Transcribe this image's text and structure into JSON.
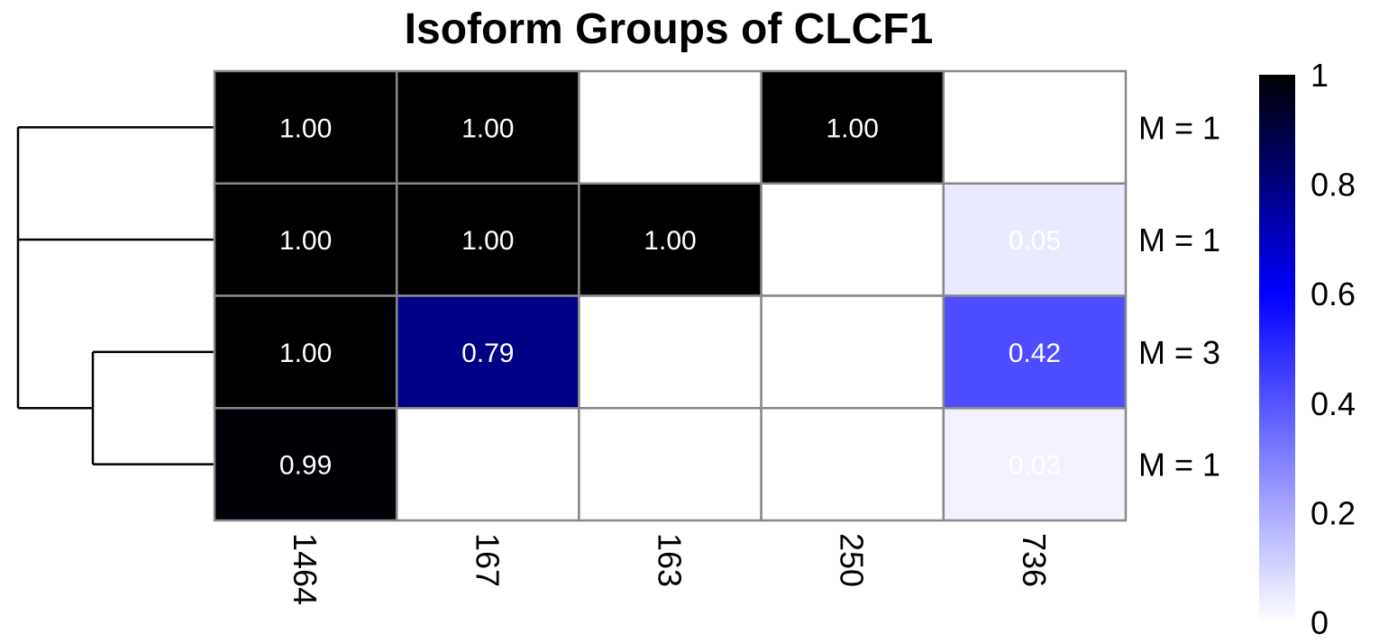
{
  "chart_data": {
    "type": "heatmap",
    "title": "Isoform Groups of CLCF1",
    "columns": [
      "1464",
      "167",
      "163",
      "250",
      "736"
    ],
    "rows": [
      "M = 1",
      "M = 1",
      "M = 3",
      "M = 1"
    ],
    "values": [
      [
        1.0,
        1.0,
        null,
        1.0,
        null
      ],
      [
        1.0,
        1.0,
        1.0,
        null,
        0.05
      ],
      [
        1.0,
        0.79,
        null,
        null,
        0.42
      ],
      [
        0.99,
        null,
        null,
        null,
        0.03
      ]
    ],
    "value_labels": [
      [
        "1.00",
        "1.00",
        "",
        "1.00",
        ""
      ],
      [
        "1.00",
        "1.00",
        "1.00",
        "",
        "0.05"
      ],
      [
        "1.00",
        "0.79",
        "",
        "",
        "0.42"
      ],
      [
        "0.99",
        "",
        "",
        "",
        "0.03"
      ]
    ],
    "color_scale": {
      "low": "#ffffff",
      "mid": "#0000ff",
      "high": "#000000",
      "range": [
        0,
        1
      ]
    },
    "legend": {
      "ticks": [
        "1",
        "0.8",
        "0.6",
        "0.4",
        "0.2",
        "0"
      ],
      "placement": "right"
    },
    "dendrogram": "row-clustering",
    "grid_color": "#888888"
  }
}
